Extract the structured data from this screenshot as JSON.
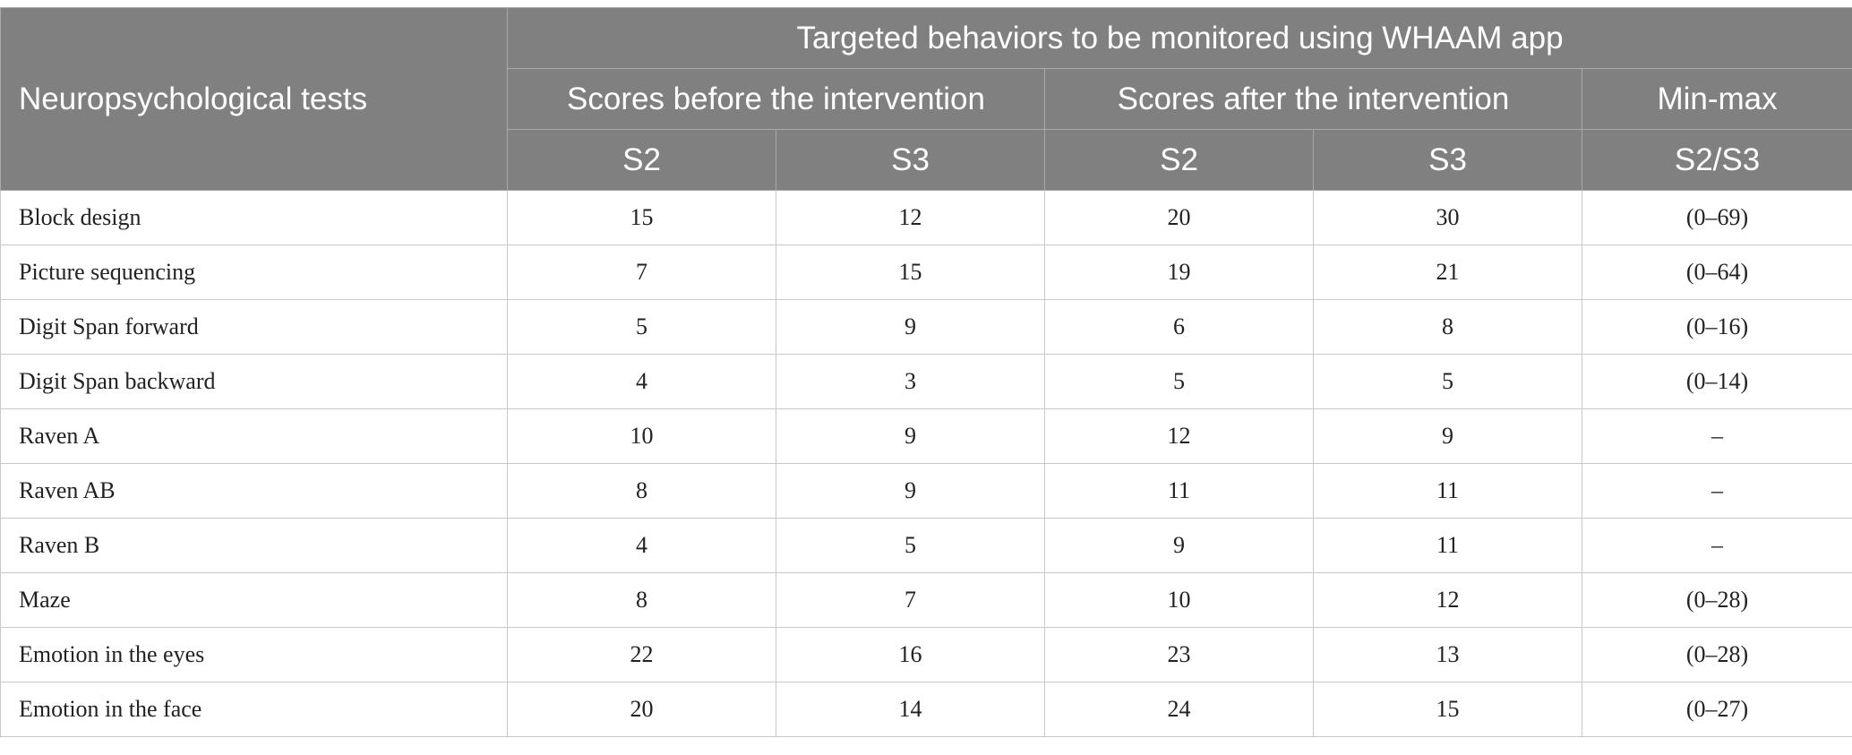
{
  "table": {
    "row_header_label": "Neuropsychological tests",
    "group_header": "Targeted behaviors to be monitored using WHAAM app",
    "subgroups": {
      "before": "Scores before the intervention",
      "after": "Scores after the intervention",
      "minmax": "Min-max"
    },
    "columns": [
      "S2",
      "S3",
      "S2",
      "S3",
      "S2/S3"
    ],
    "rows": [
      {
        "test": "Block design",
        "before_s2": "15",
        "before_s3": "12",
        "after_s2": "20",
        "after_s3": "30",
        "minmax": "(0–69)"
      },
      {
        "test": "Picture sequencing",
        "before_s2": "7",
        "before_s3": "15",
        "after_s2": "19",
        "after_s3": "21",
        "minmax": "(0–64)"
      },
      {
        "test": "Digit Span forward",
        "before_s2": "5",
        "before_s3": "9",
        "after_s2": "6",
        "after_s3": "8",
        "minmax": "(0–16)"
      },
      {
        "test": "Digit Span backward",
        "before_s2": "4",
        "before_s3": "3",
        "after_s2": "5",
        "after_s3": "5",
        "minmax": "(0–14)"
      },
      {
        "test": "Raven A",
        "before_s2": "10",
        "before_s3": "9",
        "after_s2": "12",
        "after_s3": "9",
        "minmax": "–"
      },
      {
        "test": "Raven AB",
        "before_s2": "8",
        "before_s3": "9",
        "after_s2": "11",
        "after_s3": "11",
        "minmax": "–"
      },
      {
        "test": "Raven B",
        "before_s2": "4",
        "before_s3": "5",
        "after_s2": "9",
        "after_s3": "11",
        "minmax": "–"
      },
      {
        "test": "Maze",
        "before_s2": "8",
        "before_s3": "7",
        "after_s2": "10",
        "after_s3": "12",
        "minmax": "(0–28)"
      },
      {
        "test": "Emotion in the eyes",
        "before_s2": "22",
        "before_s3": "16",
        "after_s2": "23",
        "after_s3": "13",
        "minmax": "(0–28)"
      },
      {
        "test": "Emotion in the face",
        "before_s2": "20",
        "before_s3": "14",
        "after_s2": "24",
        "after_s3": "15",
        "minmax": "(0–27)"
      }
    ]
  }
}
